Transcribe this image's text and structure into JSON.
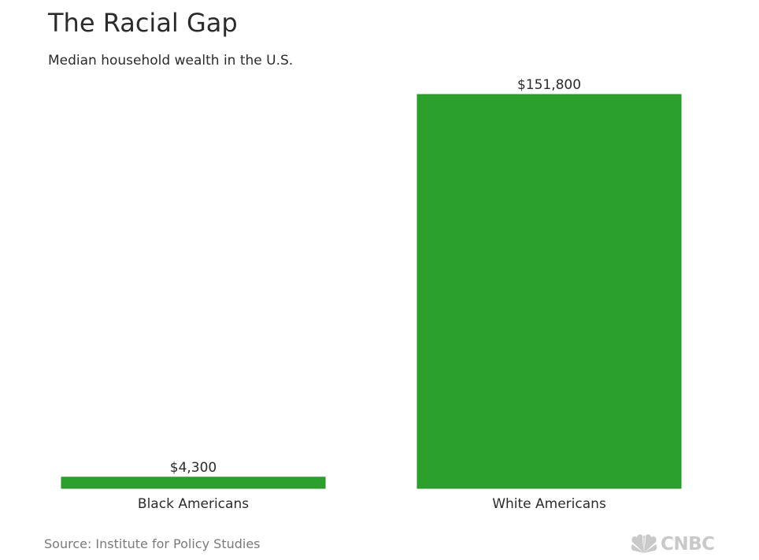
{
  "title": "The Racial Gap",
  "subtitle": "Median household wealth in the U.S.",
  "source": "Source: Institute for Policy Studies",
  "logo": {
    "text": "CNBC",
    "icon": "peacock-icon",
    "color": "#c9c9c9"
  },
  "colors": {
    "bar": "#2ca02c",
    "bar_edge": "#259425",
    "text": "#2b2b2b"
  },
  "chart_data": {
    "type": "bar",
    "categories": [
      "Black Americans",
      "White Americans"
    ],
    "values": [
      4300,
      151800
    ],
    "value_labels": [
      "$4,300",
      "$151,800"
    ],
    "title": "The Racial Gap",
    "subtitle": "Median household wealth in the U.S.",
    "xlabel": "",
    "ylabel": "",
    "ylim": [
      0,
      151800
    ],
    "grid": false,
    "legend": "none"
  }
}
